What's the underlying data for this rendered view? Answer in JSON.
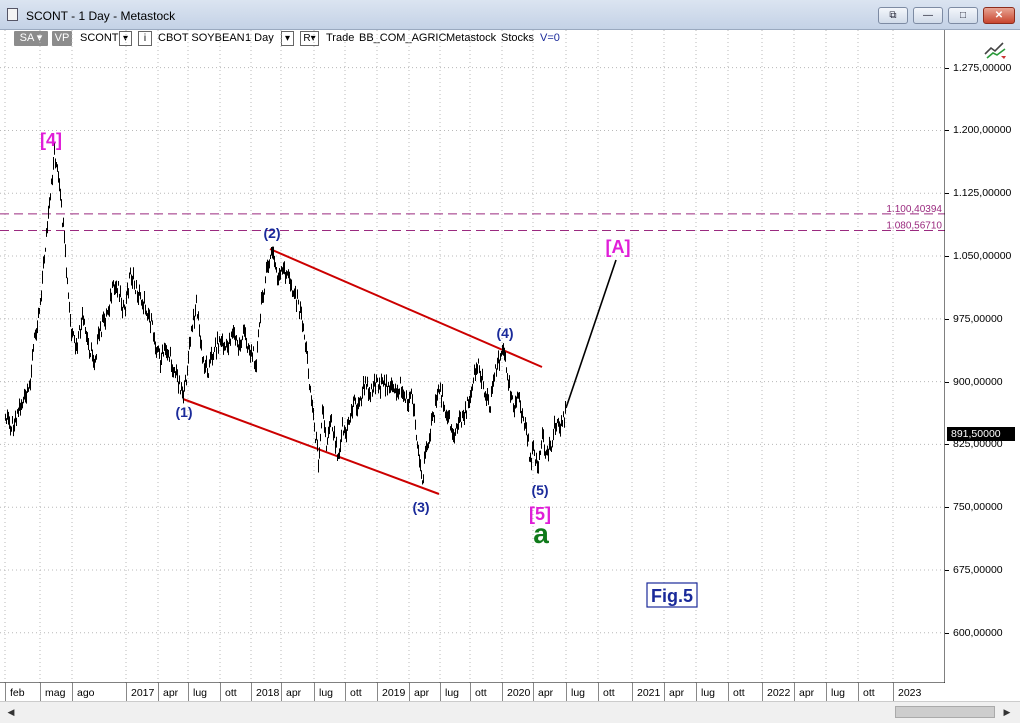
{
  "window": {
    "title": "SCONT - 1 Day - Metastock",
    "buttons": {
      "extra": "⧉",
      "minimize": "—",
      "maximize": "□",
      "close": "✕"
    }
  },
  "toolbar": {
    "sa": "SA",
    "vp": "VP",
    "symbol": "SCONT",
    "name": "CBOT SOYBEAN",
    "period": "1 Day",
    "r": "R",
    "trade": "Trade",
    "exchange": "BB_COM_AGRIC",
    "source": "Metastock",
    "category": "Stocks",
    "v": "V=0"
  },
  "price_axis": {
    "ticks": [
      "1.275,00000",
      "1.200,00000",
      "1.125,00000",
      "1.050,00000",
      "975,00000",
      "900,00000",
      "825,00000",
      "750,00000",
      "675,00000",
      "600,00000"
    ],
    "last_price": "891,50000"
  },
  "levels": [
    {
      "label": "1.100,40394",
      "value": 1100.40394
    },
    {
      "label": "1.080,56710",
      "value": 1080.5671
    }
  ],
  "time_axis": [
    "feb",
    "mag",
    "ago",
    "2017",
    "apr",
    "lug",
    "ott",
    "2018",
    "apr",
    "lug",
    "ott",
    "2019",
    "apr",
    "lug",
    "ott",
    "2020",
    "apr",
    "lug",
    "ott",
    "2021",
    "apr",
    "lug",
    "ott",
    "2022",
    "apr",
    "lug",
    "ott",
    "2023"
  ],
  "annotations": {
    "w4_top": "[4]",
    "w1": "(1)",
    "w2": "(2)",
    "w3": "(3)",
    "w4": "(4)",
    "w5": "(5)",
    "w5_big": "[5]",
    "a": "a",
    "A_target": "[A]",
    "fig": "Fig.5"
  },
  "colors": {
    "price": "#000000",
    "channel": "#cc0000",
    "level": "#9a2a7f",
    "magenta": "#e01ed8",
    "blue": "#1a2a9a",
    "green": "#0f7a1a",
    "grid": "#b8b8b8"
  },
  "chart_data": {
    "type": "line",
    "title": "SCONT - 1 Day - Metastock",
    "xlabel": "",
    "ylabel": "",
    "ylim": [
      540,
      1320
    ],
    "x": [
      "2016-02",
      "2016-05",
      "2016-06",
      "2016-08",
      "2016-12",
      "2017-04",
      "2017-06",
      "2017-09",
      "2017-12",
      "2018-03",
      "2018-05",
      "2018-07",
      "2018-09",
      "2018-12",
      "2019-03",
      "2019-05",
      "2019-07",
      "2019-10",
      "2019-12",
      "2020-02",
      "2020-03",
      "2020-04",
      "2020-05",
      "2020-06"
    ],
    "series": [
      {
        "values": [
          870,
          920,
          1205,
          1000,
          1040,
          915,
          900,
          960,
          990,
          1080,
          1030,
          860,
          830,
          900,
          920,
          800,
          900,
          890,
          950,
          900,
          860,
          830,
          850,
          891.5
        ]
      }
    ],
    "grid": true
  }
}
